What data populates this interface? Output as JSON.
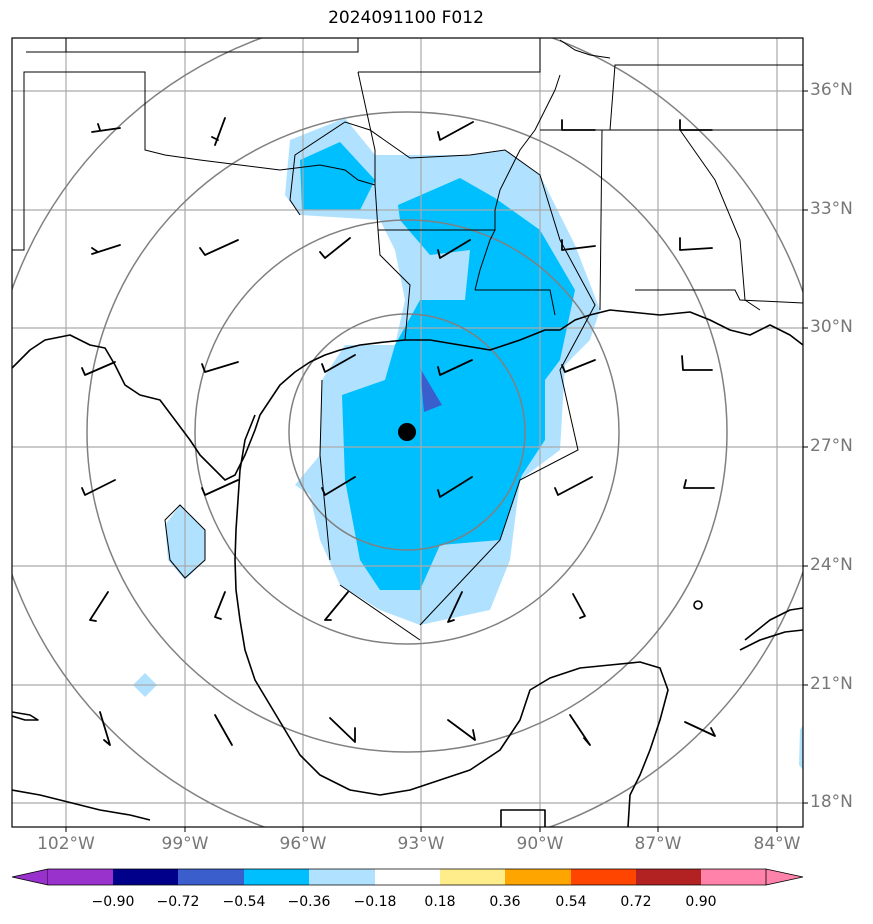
{
  "title": "2024091100 F012",
  "lat_labels": [
    "36°N",
    "33°N",
    "30°N",
    "27°N",
    "24°N",
    "21°N",
    "18°N"
  ],
  "lon_labels": [
    "102°W",
    "99°W",
    "96°W",
    "93°W",
    "90°W",
    "87°W",
    "84°W"
  ],
  "colorbar": {
    "labels": [
      "−0.90",
      "−0.72",
      "−0.54",
      "−0.36",
      "−0.18",
      "0.18",
      "0.36",
      "0.54",
      "0.72",
      "0.90"
    ],
    "colors": [
      "#9932cc",
      "#00008b",
      "#3a5fcd",
      "#00bfff",
      "#b0e2ff",
      "#ffffff",
      "#ffec8b",
      "#ffa500",
      "#ff4500",
      "#b22222",
      "#ff82ab"
    ]
  },
  "storm_center": {
    "lat": 27.4,
    "lon": -93.3
  },
  "colors": {
    "fill_light": "#b0e2ff",
    "fill_mid": "#00bfff",
    "fill_dark": "#3a5fcd",
    "grid": "#aaaaaa",
    "ring": "#808080"
  }
}
